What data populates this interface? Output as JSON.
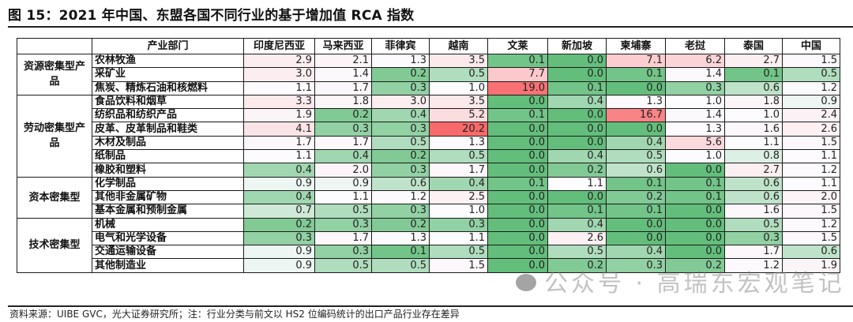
{
  "figure": {
    "title": "图 15：2021 年中国、东盟各国不同行业的基于增加值 RCA 指数",
    "source_note": "资料来源：UIBE GVC，光大证券研究所；注：行业分类与前文以 HS2 位编码统计的出口产品行业存在差异",
    "watermark": "公众号 · 高瑞东宏观笔记"
  },
  "color_scale": {
    "low": "#63be7b",
    "mid": "#fcfcff",
    "high": "#f8696b",
    "mid_value": 1.0,
    "max_value": 20.2
  },
  "table": {
    "headers": [
      "",
      "产业部门",
      "印度尼西亚",
      "马来西亚",
      "菲律宾",
      "越南",
      "文莱",
      "新加坡",
      "柬埔寨",
      "老挝",
      "泰国",
      "中国"
    ],
    "groups": [
      {
        "category": "资源密集型产品",
        "rows": [
          {
            "sector": "农林牧渔",
            "values": [
              "2.9",
              "2.1",
              "1.3",
              "3.5",
              "0.1",
              "0.0",
              "7.1",
              "6.2",
              "2.7",
              "1.5"
            ]
          },
          {
            "sector": "采矿业",
            "values": [
              "3.0",
              "1.4",
              "0.2",
              "0.5",
              "7.7",
              "0.0",
              "0.1",
              "1.4",
              "0.1",
              "0.5"
            ]
          },
          {
            "sector": "焦炭、精炼石油和核燃料",
            "values": [
              "1.1",
              "1.7",
              "0.3",
              "1.0",
              "19.0",
              "0.1",
              "0.0",
              "0.3",
              "0.6",
              "1.2"
            ]
          }
        ]
      },
      {
        "category": "劳动密集型产品",
        "rows": [
          {
            "sector": "食品饮料和烟草",
            "values": [
              "3.3",
              "1.8",
              "3.0",
              "3.5",
              "0.0",
              "0.4",
              "1.3",
              "1.0",
              "1.8",
              "0.9"
            ]
          },
          {
            "sector": "纺织品和纺织产品",
            "values": [
              "1.9",
              "0.2",
              "0.4",
              "5.2",
              "0.1",
              "0.0",
              "16.7",
              "1.4",
              "1.0",
              "2.4"
            ]
          },
          {
            "sector": "皮革、皮革制品和鞋类",
            "values": [
              "4.1",
              "0.3",
              "0.3",
              "20.2",
              "0.0",
              "0.0",
              "0.0",
              "1.3",
              "1.6",
              "2.6"
            ]
          },
          {
            "sector": "木材及制品",
            "values": [
              "1.7",
              "1.7",
              "0.5",
              "1.3",
              "0.0",
              "0.0",
              "0.4",
              "5.6",
              "1.1",
              "1.5"
            ]
          },
          {
            "sector": "纸制品",
            "values": [
              "1.1",
              "0.4",
              "0.2",
              "0.5",
              "0.0",
              "0.4",
              "0.5",
              "1.0",
              "0.8",
              "1.1"
            ]
          },
          {
            "sector": "橡胶和塑料",
            "values": [
              "0.4",
              "2.0",
              "0.3",
              "1.7",
              "0.0",
              "0.2",
              "0.6",
              "0.0",
              "2.7",
              "1.2"
            ]
          }
        ]
      },
      {
        "category": "资本密集型",
        "rows": [
          {
            "sector": "化学制品",
            "values": [
              "0.9",
              "0.9",
              "0.6",
              "0.4",
              "0.1",
              "1.1",
              "0.1",
              "0.1",
              "0.6",
              "1.1"
            ]
          },
          {
            "sector": "其他非金属矿物",
            "values": [
              "0.4",
              "1.1",
              "1.2",
              "2.5",
              "0.0",
              "0.0",
              "0.2",
              "0.1",
              "0.6",
              "2.0"
            ]
          },
          {
            "sector": "基本金属和预制金属",
            "values": [
              "0.7",
              "0.5",
              "0.3",
              "1.0",
              "0.0",
              "0.1",
              "0.1",
              "0.0",
              "1.6",
              "1.5"
            ]
          }
        ]
      },
      {
        "category": "技术密集型",
        "rows": [
          {
            "sector": "机械",
            "values": [
              "0.2",
              "0.3",
              "0.2",
              "0.3",
              "0.0",
              "0.4",
              "0.0",
              "0.0",
              "0.5",
              "1.2"
            ]
          },
          {
            "sector": "电气和光学设备",
            "values": [
              "0.3",
              "1.7",
              "1.3",
              "1.1",
              "0.0",
              "2.6",
              "0.0",
              "0.0",
              "0.3",
              "1.5"
            ]
          },
          {
            "sector": "交通运输设备",
            "values": [
              "0.9",
              "0.3",
              "0.1",
              "0.5",
              "0.0",
              "0.5",
              "0.4",
              "0.0",
              "1.7",
              "0.6"
            ]
          },
          {
            "sector": "其他制造业",
            "values": [
              "0.9",
              "0.5",
              "0.5",
              "1.5",
              "0.0",
              "0.2",
              "0.3",
              "0.2",
              "1.2",
              "1.9"
            ]
          }
        ]
      }
    ]
  }
}
